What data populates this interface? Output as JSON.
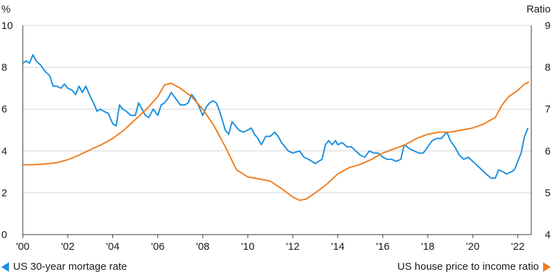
{
  "colors": {
    "mortgage": "#1a8fe0",
    "ratio": "#ee7d1d",
    "axis": "#333333",
    "grid": "#d4d4d4"
  },
  "legend": {
    "left": {
      "label": "US 30-year mortage rate",
      "icon": "triangle-left-icon"
    },
    "right": {
      "label": "US house price to income ratio",
      "icon": "triangle-right-icon"
    }
  },
  "chart_data": {
    "type": "line",
    "title": "",
    "grid": true,
    "x_range": [
      2000,
      2022.6
    ],
    "x_ticks": [
      {
        "value": 2000,
        "label": "'00"
      },
      {
        "value": 2002,
        "label": "'02"
      },
      {
        "value": 2004,
        "label": "'04"
      },
      {
        "value": 2006,
        "label": "'06"
      },
      {
        "value": 2008,
        "label": "'08"
      },
      {
        "value": 2010,
        "label": "'10"
      },
      {
        "value": 2012,
        "label": "'12"
      },
      {
        "value": 2014,
        "label": "'14"
      },
      {
        "value": 2016,
        "label": "'16"
      },
      {
        "value": 2018,
        "label": "'18"
      },
      {
        "value": 2020,
        "label": "'20"
      },
      {
        "value": 2022,
        "label": "'22"
      }
    ],
    "y_left": {
      "unit_label": "%",
      "range": [
        0,
        10
      ],
      "ticks": [
        0,
        2,
        4,
        6,
        8,
        10
      ]
    },
    "y_right": {
      "unit_label": "Ratio",
      "range": [
        4,
        9
      ],
      "ticks": [
        4,
        5,
        6,
        7,
        8,
        9
      ]
    },
    "series": [
      {
        "name": "US 30-year mortage rate",
        "axis": "left",
        "color": "#1a8fe0",
        "points": [
          [
            2000.0,
            8.2
          ],
          [
            2000.15,
            8.3
          ],
          [
            2000.3,
            8.2
          ],
          [
            2000.45,
            8.6
          ],
          [
            2000.6,
            8.3
          ],
          [
            2000.8,
            8.1
          ],
          [
            2001.0,
            7.8
          ],
          [
            2001.2,
            7.6
          ],
          [
            2001.35,
            7.1
          ],
          [
            2001.5,
            7.1
          ],
          [
            2001.7,
            7.0
          ],
          [
            2001.85,
            7.2
          ],
          [
            2002.0,
            7.0
          ],
          [
            2002.2,
            6.9
          ],
          [
            2002.35,
            6.7
          ],
          [
            2002.5,
            7.1
          ],
          [
            2002.65,
            6.8
          ],
          [
            2002.8,
            7.1
          ],
          [
            2003.0,
            6.6
          ],
          [
            2003.15,
            6.3
          ],
          [
            2003.3,
            5.9
          ],
          [
            2003.45,
            6.0
          ],
          [
            2003.6,
            5.9
          ],
          [
            2003.8,
            5.8
          ],
          [
            2004.0,
            5.3
          ],
          [
            2004.15,
            5.2
          ],
          [
            2004.3,
            6.2
          ],
          [
            2004.45,
            6.0
          ],
          [
            2004.6,
            5.9
          ],
          [
            2004.8,
            5.7
          ],
          [
            2005.0,
            5.7
          ],
          [
            2005.15,
            6.3
          ],
          [
            2005.3,
            6.0
          ],
          [
            2005.45,
            5.7
          ],
          [
            2005.6,
            5.6
          ],
          [
            2005.8,
            6.0
          ],
          [
            2006.0,
            5.7
          ],
          [
            2006.15,
            6.2
          ],
          [
            2006.3,
            6.3
          ],
          [
            2006.45,
            6.5
          ],
          [
            2006.6,
            6.8
          ],
          [
            2006.8,
            6.5
          ],
          [
            2007.0,
            6.2
          ],
          [
            2007.2,
            6.2
          ],
          [
            2007.35,
            6.3
          ],
          [
            2007.5,
            6.7
          ],
          [
            2007.65,
            6.5
          ],
          [
            2007.8,
            6.2
          ],
          [
            2008.0,
            5.7
          ],
          [
            2008.15,
            6.1
          ],
          [
            2008.3,
            6.3
          ],
          [
            2008.45,
            6.4
          ],
          [
            2008.6,
            6.3
          ],
          [
            2008.75,
            5.9
          ],
          [
            2009.0,
            5.0
          ],
          [
            2009.15,
            4.8
          ],
          [
            2009.3,
            5.4
          ],
          [
            2009.45,
            5.2
          ],
          [
            2009.6,
            5.0
          ],
          [
            2009.8,
            4.9
          ],
          [
            2010.0,
            5.0
          ],
          [
            2010.15,
            5.1
          ],
          [
            2010.3,
            4.8
          ],
          [
            2010.45,
            4.6
          ],
          [
            2010.6,
            4.3
          ],
          [
            2010.8,
            4.7
          ],
          [
            2011.0,
            4.7
          ],
          [
            2011.2,
            4.9
          ],
          [
            2011.35,
            4.7
          ],
          [
            2011.5,
            4.4
          ],
          [
            2011.65,
            4.2
          ],
          [
            2011.8,
            4.0
          ],
          [
            2012.0,
            3.9
          ],
          [
            2012.3,
            4.0
          ],
          [
            2012.5,
            3.7
          ],
          [
            2012.7,
            3.6
          ],
          [
            2012.85,
            3.5
          ],
          [
            2013.0,
            3.4
          ],
          [
            2013.15,
            3.5
          ],
          [
            2013.3,
            3.6
          ],
          [
            2013.45,
            4.3
          ],
          [
            2013.6,
            4.5
          ],
          [
            2013.75,
            4.3
          ],
          [
            2013.9,
            4.5
          ],
          [
            2014.0,
            4.3
          ],
          [
            2014.2,
            4.4
          ],
          [
            2014.4,
            4.2
          ],
          [
            2014.6,
            4.2
          ],
          [
            2014.8,
            4.0
          ],
          [
            2015.0,
            3.8
          ],
          [
            2015.2,
            3.7
          ],
          [
            2015.4,
            4.0
          ],
          [
            2015.6,
            3.9
          ],
          [
            2015.8,
            3.9
          ],
          [
            2016.0,
            3.7
          ],
          [
            2016.2,
            3.6
          ],
          [
            2016.4,
            3.6
          ],
          [
            2016.6,
            3.5
          ],
          [
            2016.8,
            3.6
          ],
          [
            2016.95,
            4.3
          ],
          [
            2017.2,
            4.1
          ],
          [
            2017.4,
            4.0
          ],
          [
            2017.6,
            3.9
          ],
          [
            2017.8,
            3.9
          ],
          [
            2018.0,
            4.2
          ],
          [
            2018.2,
            4.5
          ],
          [
            2018.4,
            4.6
          ],
          [
            2018.6,
            4.6
          ],
          [
            2018.85,
            4.9
          ],
          [
            2019.0,
            4.5
          ],
          [
            2019.2,
            4.2
          ],
          [
            2019.4,
            3.8
          ],
          [
            2019.6,
            3.6
          ],
          [
            2019.8,
            3.7
          ],
          [
            2020.0,
            3.5
          ],
          [
            2020.2,
            3.3
          ],
          [
            2020.4,
            3.1
          ],
          [
            2020.6,
            2.9
          ],
          [
            2020.8,
            2.7
          ],
          [
            2021.0,
            2.7
          ],
          [
            2021.15,
            3.1
          ],
          [
            2021.35,
            3.0
          ],
          [
            2021.5,
            2.9
          ],
          [
            2021.7,
            3.0
          ],
          [
            2021.85,
            3.1
          ],
          [
            2022.0,
            3.5
          ],
          [
            2022.15,
            3.9
          ],
          [
            2022.3,
            4.7
          ],
          [
            2022.45,
            5.1
          ]
        ]
      },
      {
        "name": "US house price to income ratio",
        "axis": "right",
        "color": "#ee7d1d",
        "points": [
          [
            2000.0,
            5.67
          ],
          [
            2000.5,
            5.67
          ],
          [
            2001.0,
            5.69
          ],
          [
            2001.5,
            5.72
          ],
          [
            2002.0,
            5.79
          ],
          [
            2002.5,
            5.9
          ],
          [
            2003.0,
            6.03
          ],
          [
            2003.5,
            6.15
          ],
          [
            2004.0,
            6.3
          ],
          [
            2004.5,
            6.5
          ],
          [
            2005.0,
            6.75
          ],
          [
            2005.5,
            7.0
          ],
          [
            2006.0,
            7.3
          ],
          [
            2006.3,
            7.58
          ],
          [
            2006.6,
            7.62
          ],
          [
            2007.0,
            7.5
          ],
          [
            2007.5,
            7.3
          ],
          [
            2008.0,
            7.0
          ],
          [
            2008.5,
            6.6
          ],
          [
            2009.0,
            6.1
          ],
          [
            2009.5,
            5.55
          ],
          [
            2010.0,
            5.38
          ],
          [
            2010.5,
            5.33
          ],
          [
            2011.0,
            5.28
          ],
          [
            2011.5,
            5.1
          ],
          [
            2012.0,
            4.9
          ],
          [
            2012.3,
            4.82
          ],
          [
            2012.6,
            4.85
          ],
          [
            2013.0,
            5.0
          ],
          [
            2013.5,
            5.2
          ],
          [
            2014.0,
            5.45
          ],
          [
            2014.5,
            5.6
          ],
          [
            2015.0,
            5.68
          ],
          [
            2015.5,
            5.8
          ],
          [
            2016.0,
            5.95
          ],
          [
            2016.5,
            6.05
          ],
          [
            2017.0,
            6.15
          ],
          [
            2017.5,
            6.3
          ],
          [
            2018.0,
            6.4
          ],
          [
            2018.5,
            6.45
          ],
          [
            2019.0,
            6.45
          ],
          [
            2019.5,
            6.5
          ],
          [
            2020.0,
            6.55
          ],
          [
            2020.5,
            6.65
          ],
          [
            2021.0,
            6.8
          ],
          [
            2021.3,
            7.1
          ],
          [
            2021.6,
            7.3
          ],
          [
            2022.0,
            7.45
          ],
          [
            2022.3,
            7.6
          ],
          [
            2022.5,
            7.65
          ]
        ]
      }
    ]
  }
}
